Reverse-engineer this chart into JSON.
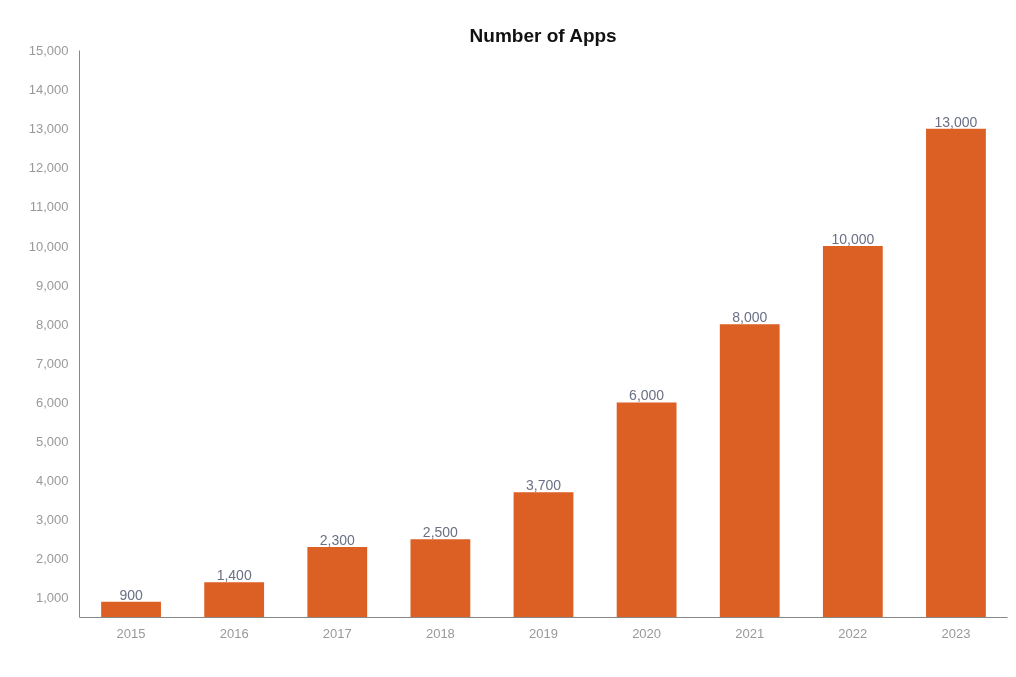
{
  "chart_data": {
    "type": "bar",
    "title": "Number of Apps",
    "categories": [
      "2015",
      "2016",
      "2017",
      "2018",
      "2019",
      "2020",
      "2021",
      "2022",
      "2023"
    ],
    "values": [
      900,
      1400,
      2300,
      2500,
      3700,
      6000,
      8000,
      10000,
      13000
    ],
    "value_labels": [
      "900",
      "1,400",
      "2,300",
      "2,500",
      "3,700",
      "6,000",
      "8,000",
      "10,000",
      "13,000"
    ],
    "color": "#dc5f24",
    "ylim": [
      500,
      15000
    ],
    "yticks": [
      {
        "value": 1000,
        "label": "1,000"
      },
      {
        "value": 2000,
        "label": "2,000"
      },
      {
        "value": 3000,
        "label": "3,000"
      },
      {
        "value": 4000,
        "label": "4,000"
      },
      {
        "value": 5000,
        "label": "5,000"
      },
      {
        "value": 6000,
        "label": "6,000"
      },
      {
        "value": 7000,
        "label": "7,000"
      },
      {
        "value": 8000,
        "label": "8,000"
      },
      {
        "value": 9000,
        "label": "9,000"
      },
      {
        "value": 10000,
        "label": "10,000"
      },
      {
        "value": 11000,
        "label": "11,000"
      },
      {
        "value": 12000,
        "label": "12,000"
      },
      {
        "value": 13000,
        "label": "13,000"
      },
      {
        "value": 14000,
        "label": "14,000"
      },
      {
        "value": 15000,
        "label": "15,000"
      }
    ],
    "grid": false
  }
}
